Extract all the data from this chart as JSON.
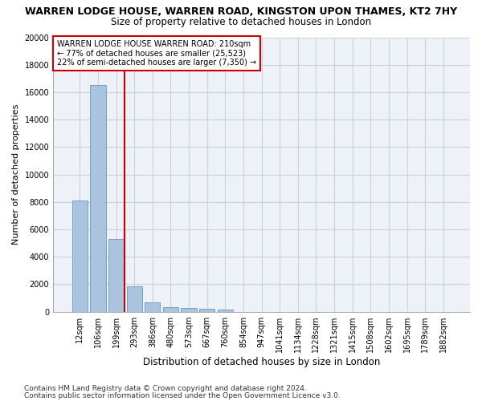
{
  "title": "WARREN LODGE HOUSE, WARREN ROAD, KINGSTON UPON THAMES, KT2 7HY",
  "subtitle": "Size of property relative to detached houses in London",
  "xlabel": "Distribution of detached houses by size in London",
  "ylabel": "Number of detached properties",
  "categories": [
    "12sqm",
    "106sqm",
    "199sqm",
    "293sqm",
    "386sqm",
    "480sqm",
    "573sqm",
    "667sqm",
    "760sqm",
    "854sqm",
    "947sqm",
    "1041sqm",
    "1134sqm",
    "1228sqm",
    "1321sqm",
    "1415sqm",
    "1508sqm",
    "1602sqm",
    "1695sqm",
    "1789sqm",
    "1882sqm"
  ],
  "values": [
    8100,
    16500,
    5300,
    1850,
    700,
    350,
    270,
    210,
    170,
    0,
    0,
    0,
    0,
    0,
    0,
    0,
    0,
    0,
    0,
    0,
    0
  ],
  "bar_color": "#aac4e0",
  "bar_edge_color": "#6699bb",
  "vline_color": "#cc0000",
  "vline_x": 2.45,
  "annotation_text": "WARREN LODGE HOUSE WARREN ROAD: 210sqm\n← 77% of detached houses are smaller (25,523)\n22% of semi-detached houses are larger (7,350) →",
  "annotation_box_color": "#cc0000",
  "ylim": [
    0,
    20000
  ],
  "yticks": [
    0,
    2000,
    4000,
    6000,
    8000,
    10000,
    12000,
    14000,
    16000,
    18000,
    20000
  ],
  "grid_color": "#c8d0dc",
  "background_color": "#eef2f8",
  "footer_line1": "Contains HM Land Registry data © Crown copyright and database right 2024.",
  "footer_line2": "Contains public sector information licensed under the Open Government Licence v3.0.",
  "title_fontsize": 9,
  "subtitle_fontsize": 8.5,
  "xlabel_fontsize": 8.5,
  "ylabel_fontsize": 8,
  "tick_fontsize": 7,
  "annotation_fontsize": 7,
  "footer_fontsize": 6.5
}
